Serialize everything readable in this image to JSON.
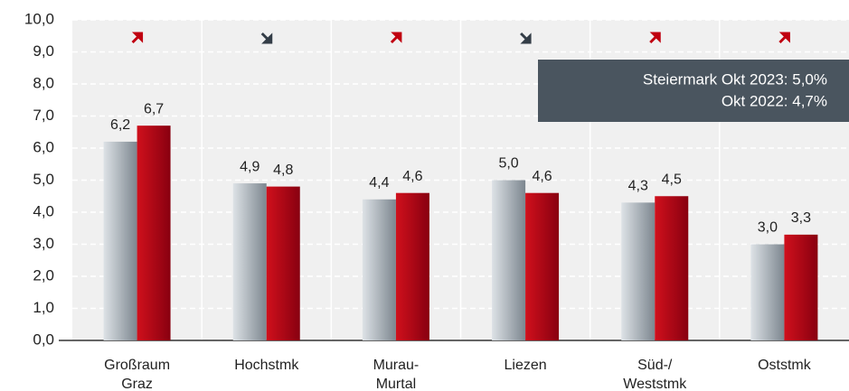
{
  "chart_data": {
    "type": "bar",
    "categories": [
      [
        "Großraum",
        "Graz"
      ],
      [
        "Hochstmk"
      ],
      [
        "Murau-",
        "Murtal"
      ],
      [
        "Liezen"
      ],
      [
        "Süd-/",
        "Weststmk"
      ],
      [
        "Oststmk"
      ]
    ],
    "series": [
      {
        "color": "#9aa3ab",
        "values": [
          6.2,
          4.9,
          4.4,
          5.0,
          4.3,
          3.0
        ],
        "value_labels": [
          "6,2",
          "4,9",
          "4,4",
          "5,0",
          "4,3",
          "3,0"
        ]
      },
      {
        "color": "#b0000c",
        "values": [
          6.7,
          4.8,
          4.6,
          4.6,
          4.5,
          3.3
        ],
        "value_labels": [
          "6,7",
          "4,8",
          "4,6",
          "4,6",
          "4,5",
          "3,3"
        ]
      }
    ],
    "trend": [
      "up",
      "down",
      "up",
      "down",
      "up",
      "up"
    ],
    "annotation": [
      "Steiermark Okt 2023: 5,0%",
      "Okt 2022: 4,7%"
    ],
    "ylim": [
      0,
      10
    ],
    "yticks": [
      {
        "value": 0,
        "label": "0,0"
      },
      {
        "value": 1,
        "label": "1,0"
      },
      {
        "value": 2,
        "label": "2,0"
      },
      {
        "value": 3,
        "label": "3,0"
      },
      {
        "value": 4,
        "label": "4,0"
      },
      {
        "value": 5,
        "label": "5,0"
      },
      {
        "value": 6,
        "label": "6,0"
      },
      {
        "value": 7,
        "label": "7,0"
      },
      {
        "value": 8,
        "label": "8,0"
      },
      {
        "value": 9,
        "label": "9,0"
      },
      {
        "value": 10,
        "label": "10,0"
      }
    ],
    "grid": true
  }
}
